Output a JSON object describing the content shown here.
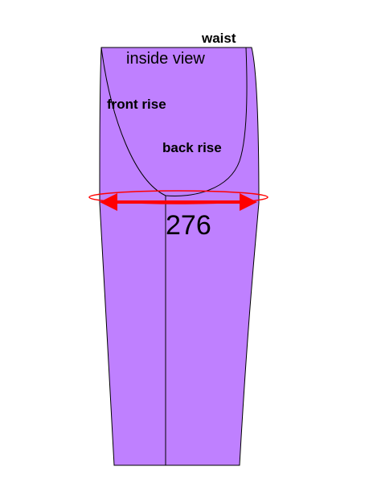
{
  "labels": {
    "waist": "waist",
    "inside_view": "inside view",
    "front_rise": "front rise",
    "back_rise": "back rise",
    "measurement": "276"
  },
  "colors": {
    "garment_fill": "#bf80ff",
    "outline": "#000000",
    "measure_arrow": "#ff0000",
    "background": "#ffffff"
  }
}
